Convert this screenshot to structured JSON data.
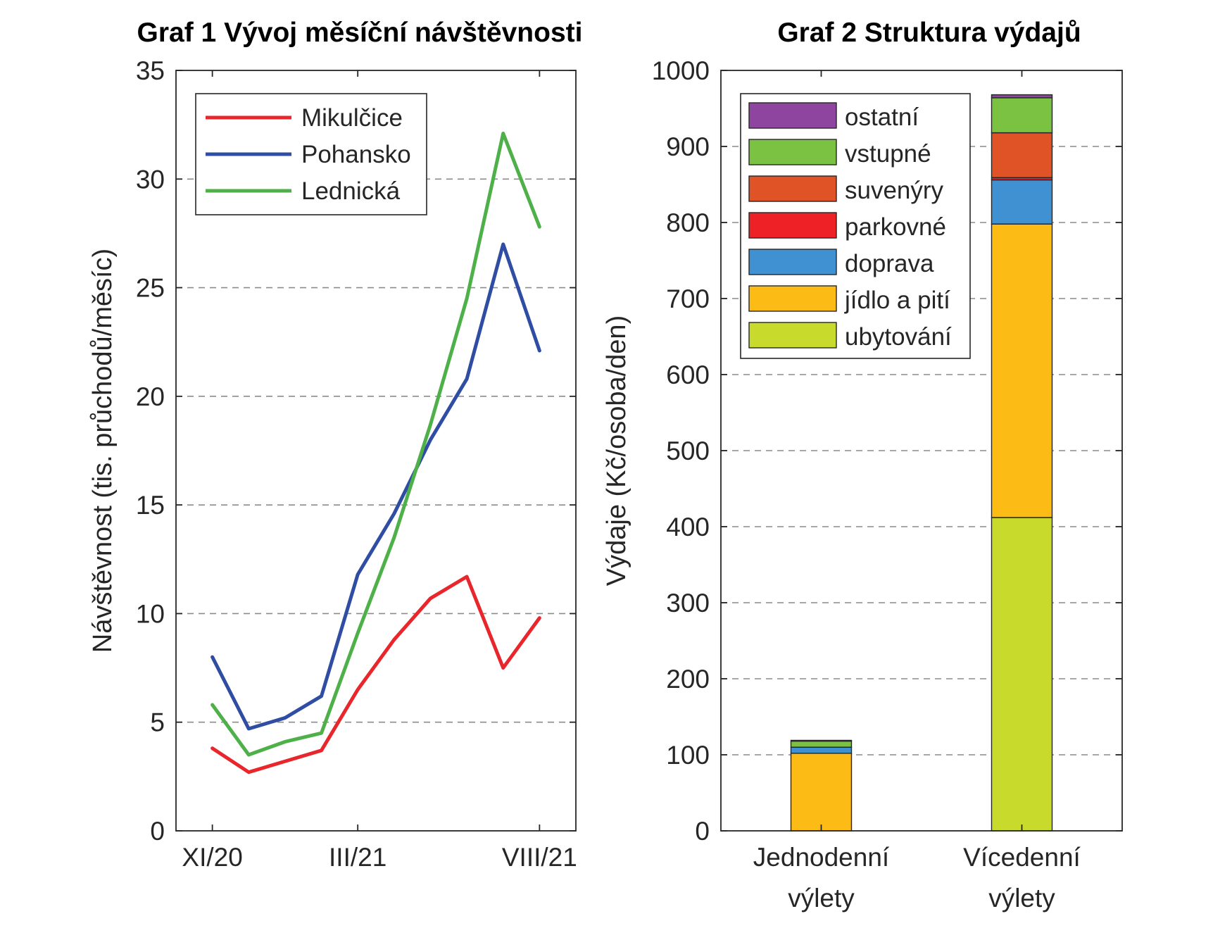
{
  "colors": {
    "Mikulčice": "#e8262b",
    "Pohansko": "#2e4da3",
    "Lednická": "#4eb048",
    "ostatní": "#8e459f",
    "vstupné": "#7cc242",
    "suvenýry": "#e05326",
    "parkovné": "#ee2126",
    "doprava": "#3f91d2",
    "jídlo a pití": "#fcbb15",
    "ubytování": "#c8db2c"
  },
  "chart_data": [
    {
      "type": "line",
      "title": "Graf 1 Vývoj měsíční návštěvnosti",
      "xlabel": "",
      "ylabel": "Návštěvnost  (tis. průchodů/měsíc)",
      "x": [
        1,
        2,
        3,
        4,
        5,
        6,
        7,
        8,
        9,
        10
      ],
      "xlim": [
        0,
        11
      ],
      "xticks": [
        {
          "x": 1,
          "label": "XI/20"
        },
        {
          "x": 5,
          "label": "III/21"
        },
        {
          "x": 10,
          "label": "VIII/21"
        }
      ],
      "ylim": [
        0,
        35
      ],
      "yticks": [
        0,
        5,
        10,
        15,
        20,
        25,
        30,
        35
      ],
      "grid": "horizontal dashed",
      "legend": "top-left",
      "series": [
        {
          "name": "Mikulčice",
          "values": [
            3.8,
            2.7,
            3.2,
            3.7,
            6.5,
            8.8,
            10.7,
            11.7,
            7.5,
            9.8
          ]
        },
        {
          "name": "Pohansko",
          "values": [
            8.0,
            4.7,
            5.2,
            6.2,
            11.8,
            14.6,
            18.0,
            20.8,
            27.0,
            22.1
          ]
        },
        {
          "name": "Lednická",
          "values": [
            5.8,
            3.5,
            4.1,
            4.5,
            9.1,
            13.5,
            18.7,
            24.5,
            32.1,
            27.8
          ]
        }
      ]
    },
    {
      "type": "bar",
      "stacked": true,
      "title": "Graf 2 Struktura výdajů",
      "xlabel": "",
      "ylabel": "Výdaje  (Kč/osoba/den)",
      "categories": [
        "Jednodenní\nvýlety",
        "Vícedenní\nvýlety"
      ],
      "ylim": [
        0,
        1000
      ],
      "yticks": [
        0,
        100,
        200,
        300,
        400,
        500,
        600,
        700,
        800,
        900,
        1000
      ],
      "grid": "horizontal dashed",
      "legend": "top-left",
      "legend_order": [
        "ostatní",
        "vstupné",
        "suvenýry",
        "parkovné",
        "doprava",
        "jídlo a pití",
        "ubytování"
      ],
      "series": [
        {
          "name": "ubytování",
          "values": [
            0,
            412
          ]
        },
        {
          "name": "jídlo a pití",
          "values": [
            102,
            386
          ]
        },
        {
          "name": "doprava",
          "values": [
            8,
            58
          ]
        },
        {
          "name": "parkovné",
          "values": [
            0,
            3
          ]
        },
        {
          "name": "suvenýry",
          "values": [
            0,
            59
          ]
        },
        {
          "name": "vstupné",
          "values": [
            8,
            46
          ]
        },
        {
          "name": "ostatní",
          "values": [
            1,
            4
          ]
        }
      ]
    }
  ]
}
